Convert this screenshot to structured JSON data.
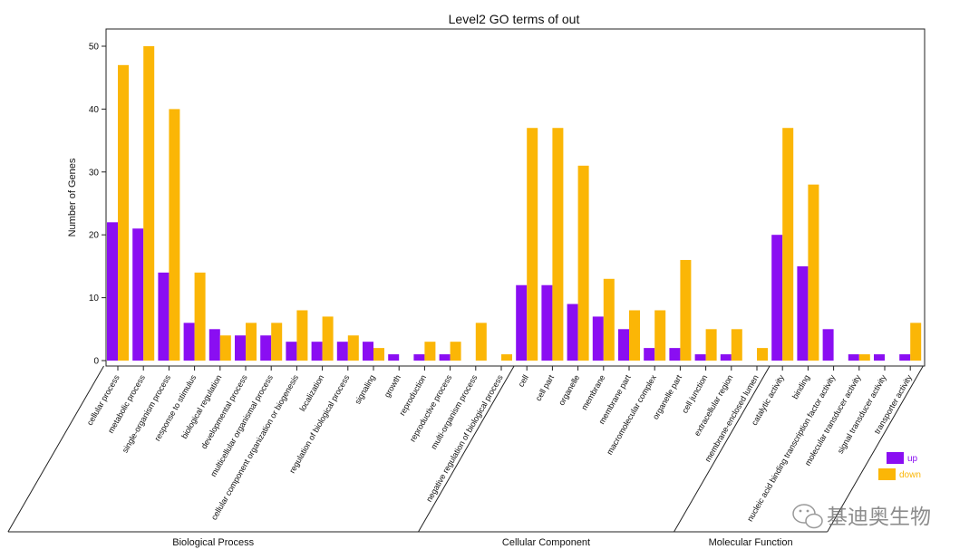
{
  "chart_data": {
    "type": "bar",
    "title": "Level2 GO terms of out",
    "ylabel": "Number of Genes",
    "xlabel": "",
    "ylim": [
      0,
      53
    ],
    "yticks": [
      0,
      10,
      20,
      30,
      40,
      50
    ],
    "categories": [
      "cellular process",
      "metabolic process",
      "single-organism process",
      "response to stimulus",
      "biological regulation",
      "developmental process",
      "multicellular organismal process",
      "cellular component organization or biogenesis",
      "localization",
      "regulation of biological process",
      "signaling",
      "growth",
      "reproduction",
      "reproductive process",
      "multi-organism process",
      "negative regulation of biological process",
      "cell",
      "cell part",
      "organelle",
      "membrane",
      "membrane part",
      "macromolecular complex",
      "organelle part",
      "cell junction",
      "extracellular region",
      "membrane-enclosed lumen",
      "catalytic activity",
      "binding",
      "nucleic acid binding transcription factor activity",
      "molecular transducer activity",
      "signal transducer activity",
      "transporter activity"
    ],
    "series": [
      {
        "name": "up",
        "color": "#8a0ef2",
        "values": [
          22,
          21,
          14,
          6,
          5,
          4,
          4,
          3,
          3,
          3,
          3,
          1,
          1,
          1,
          0,
          0,
          12,
          12,
          9,
          7,
          5,
          2,
          2,
          1,
          1,
          0,
          20,
          15,
          5,
          1,
          1,
          1
        ]
      },
      {
        "name": "down",
        "color": "#fbb606",
        "values": [
          47,
          50,
          40,
          14,
          4,
          6,
          6,
          8,
          7,
          4,
          2,
          0,
          3,
          3,
          6,
          1,
          37,
          37,
          31,
          13,
          8,
          8,
          16,
          5,
          5,
          2,
          37,
          28,
          0,
          1,
          0,
          6
        ]
      }
    ],
    "groups": [
      {
        "name": "Biological Process",
        "count": 16
      },
      {
        "name": "Cellular Component",
        "count": 10
      },
      {
        "name": "Molecular Function",
        "count": 6
      }
    ],
    "legend_position": "right",
    "grid": false
  },
  "watermark": {
    "text": "基迪奥生物",
    "icon": "wechat-icon"
  }
}
